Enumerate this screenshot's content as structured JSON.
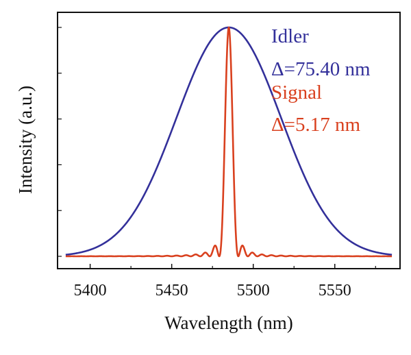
{
  "chart_data": {
    "type": "line",
    "title": "",
    "xlabel": "Wavelength (nm)",
    "ylabel": "Intensity (a.u.)",
    "xlim": [
      5380,
      5590
    ],
    "ylim": [
      0,
      1.05
    ],
    "x_ticks": [
      5400,
      5450,
      5500,
      5550
    ],
    "x_tick_labels": [
      "5400",
      "5450",
      "5500",
      "5550"
    ],
    "grid": false,
    "legend_position": "top-right",
    "series": [
      {
        "name": "Idler",
        "annotation": "Δ=75.40 nm",
        "color": "#33309a",
        "center": 5485,
        "fwhm": 75.4,
        "x": [
          5385,
          5400,
          5410,
          5420,
          5430,
          5440,
          5450,
          5460,
          5470,
          5480,
          5485,
          5490,
          5500,
          5510,
          5520,
          5530,
          5540,
          5550,
          5560,
          5570,
          5585
        ],
        "y": [
          0.0,
          0.04,
          0.08,
          0.15,
          0.25,
          0.41,
          0.56,
          0.74,
          0.89,
          0.99,
          1.0,
          0.99,
          0.89,
          0.74,
          0.56,
          0.41,
          0.25,
          0.15,
          0.08,
          0.04,
          0.0
        ]
      },
      {
        "name": "Signal",
        "annotation": "Δ=5.17 nm",
        "color": "#d9401e",
        "center": 5485,
        "fwhm": 5.17,
        "x": [
          5385,
          5460,
          5470,
          5474,
          5476,
          5478,
          5480,
          5482,
          5483,
          5484,
          5485,
          5486,
          5487,
          5488,
          5490,
          5492,
          5494,
          5496,
          5500,
          5510,
          5585
        ],
        "y": [
          0.0,
          0.0,
          0.01,
          0.02,
          0.03,
          0.05,
          0.0,
          0.2,
          0.55,
          0.9,
          1.0,
          0.9,
          0.55,
          0.2,
          0.0,
          0.05,
          0.03,
          0.02,
          0.01,
          0.0,
          0.0
        ]
      }
    ]
  }
}
